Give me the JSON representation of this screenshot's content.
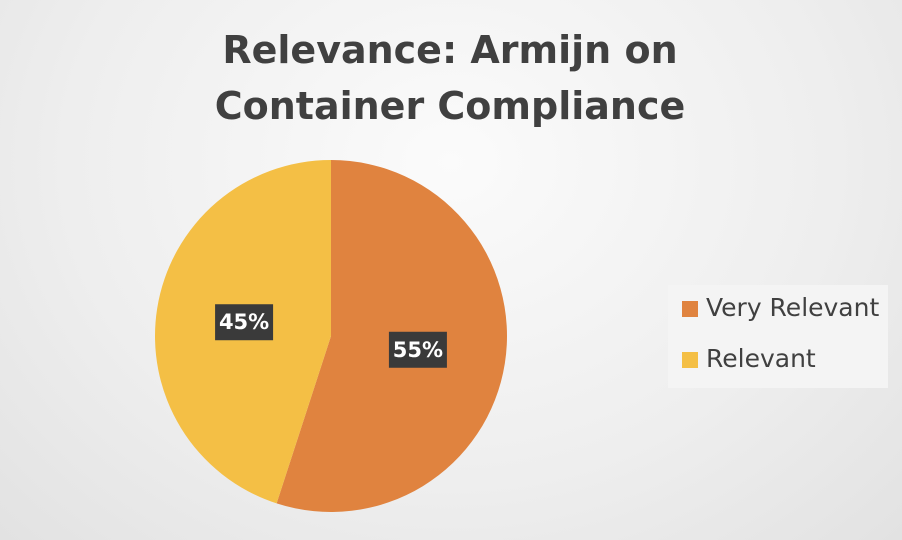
{
  "chart_data": {
    "type": "pie",
    "title": "Relevance: Armijn on Container Compliance",
    "categories": [
      "Very Relevant",
      "Relevant"
    ],
    "values": [
      55,
      45
    ],
    "value_labels": [
      "55%",
      "45%"
    ],
    "colors": [
      "#e0833f",
      "#f4bf45"
    ],
    "legend": "right"
  }
}
